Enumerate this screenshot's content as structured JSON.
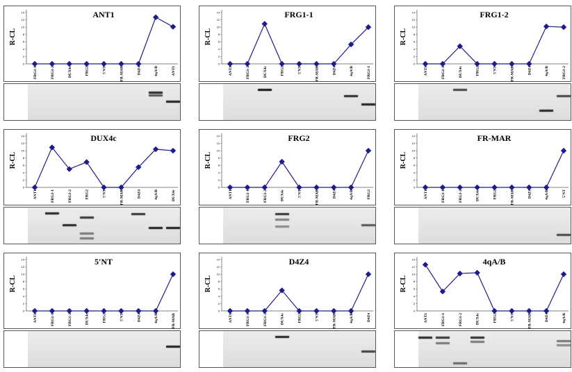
{
  "chart_data": [
    {
      "type": "line",
      "title": "ANT1",
      "ylabel": "R-CL",
      "ylim": [
        0,
        14
      ],
      "yticks": [
        0,
        2,
        4,
        6,
        8,
        10,
        12,
        14
      ],
      "categories": [
        "FRG1-1",
        "FRG1-2",
        "DUX4c",
        "FRG2",
        "5'NT",
        "FR-MAR",
        "D4Z4",
        "4qA/B",
        "ANT1"
      ],
      "values": [
        0,
        0,
        0,
        0,
        0,
        0,
        0,
        12.7,
        10.1
      ],
      "color": "#1c1c8c",
      "gel_bands": [
        {
          "lane": 8,
          "pos": 0.18,
          "strength": 0.9
        },
        {
          "lane": 8,
          "pos": 0.28,
          "strength": 0.6
        },
        {
          "lane": 9,
          "pos": 0.45,
          "strength": 0.95
        }
      ]
    },
    {
      "type": "line",
      "title": "FRG1-1",
      "ylabel": "R-CL",
      "ylim": [
        0,
        14
      ],
      "yticks": [
        0,
        2,
        4,
        6,
        8,
        10,
        12,
        14
      ],
      "categories": [
        "ANT1",
        "FRG1-2",
        "DUX4c",
        "FRG2",
        "5'NT",
        "FR-MAR",
        "D4Z4",
        "4qA/B",
        "FRG1-1"
      ],
      "values": [
        0,
        0,
        10.9,
        0,
        0,
        0,
        0,
        5.3,
        10.0
      ],
      "color": "#1c1c8c",
      "gel_bands": [
        {
          "lane": 3,
          "pos": 0.1,
          "strength": 1.0
        },
        {
          "lane": 8,
          "pos": 0.3,
          "strength": 0.85
        },
        {
          "lane": 9,
          "pos": 0.55,
          "strength": 0.95
        }
      ]
    },
    {
      "type": "line",
      "title": "FRG1-2",
      "ylabel": "R-CL",
      "ylim": [
        0,
        14
      ],
      "yticks": [
        0,
        2,
        4,
        6,
        8,
        10,
        12,
        14
      ],
      "categories": [
        "ANT1",
        "FRG1-1",
        "DUX4c",
        "FRG2",
        "5'NT",
        "FR-MAR",
        "D4Z4",
        "4qA/B",
        "FRG1-2"
      ],
      "values": [
        0,
        0,
        4.8,
        0,
        0,
        0,
        0,
        10.2,
        10.0
      ],
      "color": "#1c1c8c",
      "gel_bands": [
        {
          "lane": 3,
          "pos": 0.1,
          "strength": 0.7
        },
        {
          "lane": 8,
          "pos": 0.72,
          "strength": 0.9
        },
        {
          "lane": 9,
          "pos": 0.3,
          "strength": 0.7
        }
      ]
    },
    {
      "type": "line",
      "title": "DUX4c",
      "ylabel": "R-CL",
      "ylim": [
        0,
        14
      ],
      "yticks": [
        0,
        2,
        4,
        6,
        8,
        10,
        12,
        14
      ],
      "categories": [
        "ANT1",
        "FRG1-1",
        "FRG1-2",
        "FRG2",
        "5'NT",
        "FR-MAR",
        "D4Z4",
        "4qA/B",
        "DUX4c"
      ],
      "values": [
        0,
        10.9,
        5.0,
        6.9,
        0,
        0,
        5.5,
        10.4,
        10.0
      ],
      "color": "#1c1c8c",
      "gel_bands": [
        {
          "lane": 2,
          "pos": 0.1,
          "strength": 0.9
        },
        {
          "lane": 3,
          "pos": 0.45,
          "strength": 0.9
        },
        {
          "lane": 4,
          "pos": 0.22,
          "strength": 0.8
        },
        {
          "lane": 4,
          "pos": 0.7,
          "strength": 0.4
        },
        {
          "lane": 4,
          "pos": 0.85,
          "strength": 0.4
        },
        {
          "lane": 7,
          "pos": 0.12,
          "strength": 0.8
        },
        {
          "lane": 8,
          "pos": 0.55,
          "strength": 0.95
        },
        {
          "lane": 9,
          "pos": 0.55,
          "strength": 0.95
        }
      ]
    },
    {
      "type": "line",
      "title": "FRG2",
      "ylabel": "R-CL",
      "ylim": [
        0,
        14
      ],
      "yticks": [
        0,
        2,
        4,
        6,
        8,
        10,
        12,
        14
      ],
      "categories": [
        "ANT1",
        "FRG1-1",
        "FRG1-2",
        "DUX4c",
        "5'NT",
        "FR-MAR",
        "D4Z4",
        "4qA/B",
        "FRG2"
      ],
      "values": [
        0,
        0,
        0,
        7.0,
        0,
        0,
        0,
        0,
        10.0
      ],
      "color": "#1c1c8c",
      "gel_bands": [
        {
          "lane": 4,
          "pos": 0.12,
          "strength": 0.8
        },
        {
          "lane": 4,
          "pos": 0.3,
          "strength": 0.35
        },
        {
          "lane": 4,
          "pos": 0.5,
          "strength": 0.3
        },
        {
          "lane": 9,
          "pos": 0.45,
          "strength": 0.6
        }
      ]
    },
    {
      "type": "line",
      "title": "FR-MAR",
      "ylabel": "R-CL",
      "ylim": [
        0,
        14
      ],
      "yticks": [
        0,
        2,
        4,
        6,
        8,
        10,
        12,
        14
      ],
      "categories": [
        "ANT1",
        "FRG1-1",
        "FRG1-2",
        "DUX4c",
        "FRG2",
        "FR-MAR",
        "D4Z4",
        "4qA/B",
        "5'NT"
      ],
      "values": [
        0,
        0,
        0,
        0,
        0,
        0,
        0,
        0,
        10.0
      ],
      "color": "#1c1c8c",
      "gel_bands": [
        {
          "lane": 9,
          "pos": 0.75,
          "strength": 0.7
        }
      ]
    },
    {
      "type": "line",
      "title": "5'NT",
      "ylabel": "R-CL",
      "ylim": [
        0,
        14
      ],
      "yticks": [
        0,
        2,
        4,
        6,
        8,
        10,
        12,
        14
      ],
      "categories": [
        "ANT1",
        "FRG1-1",
        "FRG1-2",
        "DUX4c",
        "FRG2",
        "5'NT",
        "D4Z4",
        "4qA/B",
        "FR-MAR"
      ],
      "values": [
        0,
        0,
        0,
        0,
        0,
        0,
        0,
        0,
        10.0
      ],
      "color": "#1c1c8c",
      "gel_bands": [
        {
          "lane": 9,
          "pos": 0.4,
          "strength": 0.95
        }
      ]
    },
    {
      "type": "line",
      "title": "D4Z4",
      "ylabel": "R-CL",
      "ylim": [
        0,
        14
      ],
      "yticks": [
        0,
        2,
        4,
        6,
        8,
        10,
        12,
        14
      ],
      "categories": [
        "ANT1",
        "FRG1-1",
        "FRG1-2",
        "DUX4c",
        "FRG2",
        "5'NT",
        "FR-MAR",
        "4qA/B",
        "D4Z4"
      ],
      "values": [
        0,
        0,
        0,
        5.6,
        0,
        0,
        0,
        0,
        10.0
      ],
      "color": "#1c1c8c",
      "gel_bands": [
        {
          "lane": 4,
          "pos": 0.1,
          "strength": 0.9
        },
        {
          "lane": 9,
          "pos": 0.55,
          "strength": 0.75
        }
      ]
    },
    {
      "type": "line",
      "title": "4qA/B",
      "ylabel": "R-CL",
      "ylim": [
        0,
        14
      ],
      "yticks": [
        0,
        2,
        4,
        6,
        8,
        10,
        12,
        14
      ],
      "categories": [
        "ANT1",
        "FRG1-1",
        "FRG1-2",
        "DUX4c",
        "FRG2",
        "5'NT",
        "FR-MAR",
        "D4Z4",
        "4qA/B"
      ],
      "values": [
        12.6,
        5.3,
        10.2,
        10.4,
        0,
        0,
        0,
        0,
        10.0
      ],
      "color": "#1c1c8c",
      "gel_bands": [
        {
          "lane": 1,
          "pos": 0.12,
          "strength": 0.9
        },
        {
          "lane": 2,
          "pos": 0.12,
          "strength": 0.8
        },
        {
          "lane": 2,
          "pos": 0.3,
          "strength": 0.4
        },
        {
          "lane": 3,
          "pos": 0.9,
          "strength": 0.5
        },
        {
          "lane": 4,
          "pos": 0.12,
          "strength": 0.85
        },
        {
          "lane": 4,
          "pos": 0.25,
          "strength": 0.4
        },
        {
          "lane": 9,
          "pos": 0.22,
          "strength": 0.4
        },
        {
          "lane": 9,
          "pos": 0.35,
          "strength": 0.3
        }
      ]
    }
  ]
}
